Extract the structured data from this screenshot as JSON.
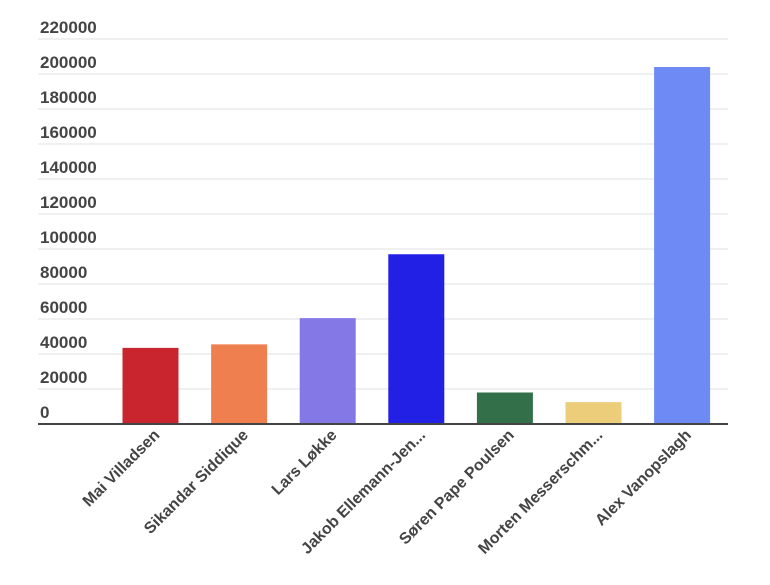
{
  "chart_data": {
    "type": "bar",
    "title": "",
    "xlabel": "",
    "ylabel": "",
    "ylim": [
      0,
      220000
    ],
    "yticks": [
      0,
      20000,
      40000,
      60000,
      80000,
      100000,
      120000,
      140000,
      160000,
      180000,
      200000,
      220000
    ],
    "grid": true,
    "legend": "none",
    "categories": [
      "Mai Villadsen",
      "Sikandar Siddique",
      "Lars Løkke",
      "Jakob Ellemann-Jen...",
      "Søren Pape Poulsen",
      "Morten Messerschm...",
      "Alex Vanopslagh"
    ],
    "values": [
      43500,
      45500,
      60500,
      97000,
      18000,
      12500,
      204000
    ],
    "colors": [
      "#c9252f",
      "#f07f50",
      "#8478e6",
      "#2320e6",
      "#33704a",
      "#eccd7a",
      "#6e8bf5"
    ]
  }
}
